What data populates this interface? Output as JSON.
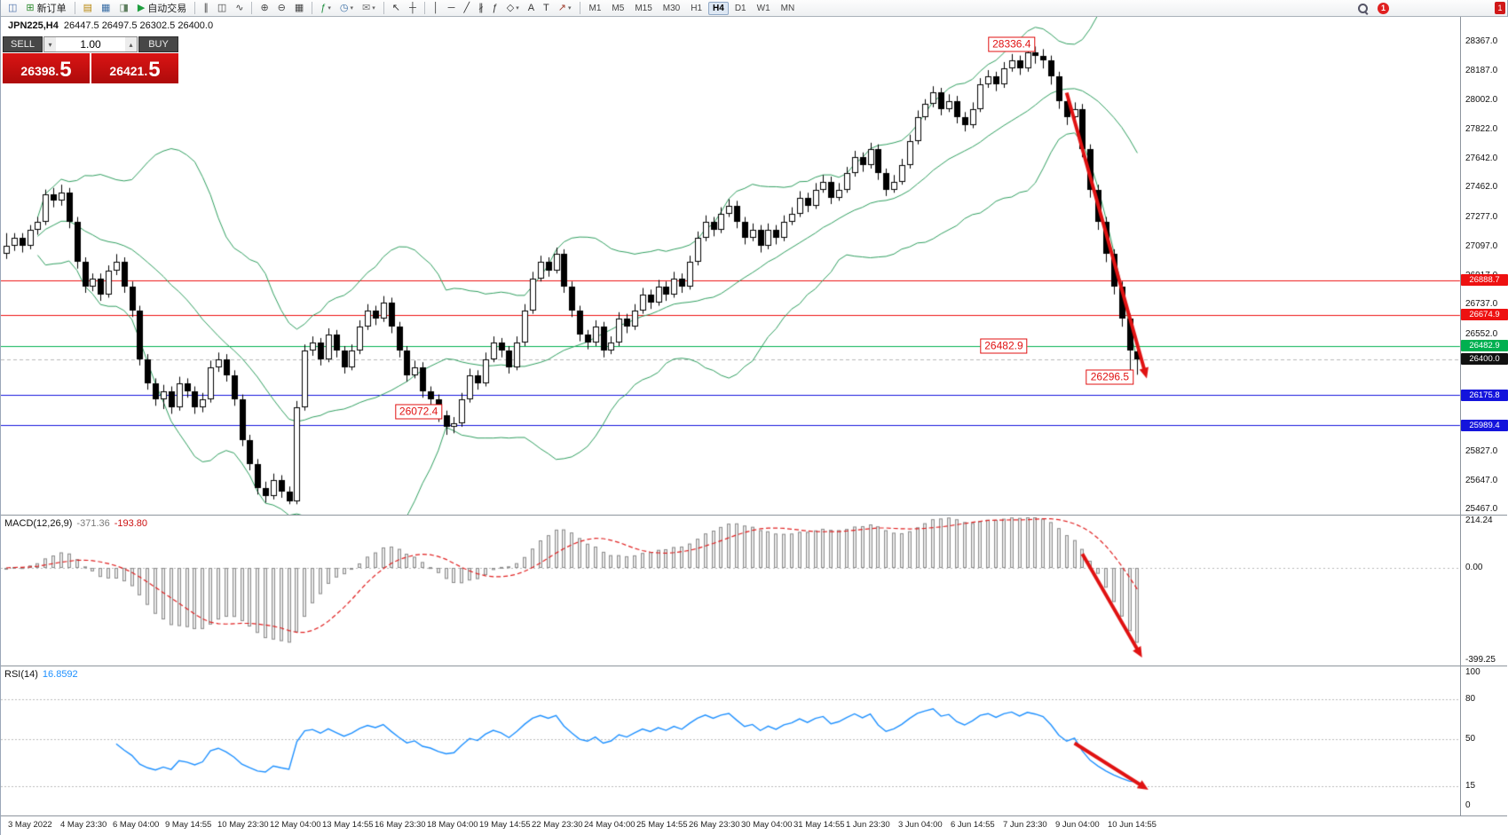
{
  "toolbar": {
    "new_order_label": "新订单",
    "autotrade_label": "自动交易",
    "timeframes": [
      "M1",
      "M5",
      "M15",
      "M30",
      "H1",
      "H4",
      "D1",
      "W1",
      "MN"
    ],
    "active_timeframe": "H4",
    "notification_count": "1",
    "corner_badge": "1",
    "items": [
      {
        "type": "icon",
        "name": "chart-window-icon",
        "glyph": "◫",
        "color": "#4a6ea9"
      },
      {
        "type": "button",
        "name": "new-order-button",
        "glyph": "⊞",
        "color": "#2e8b2e",
        "label_key": "new_order_label"
      },
      {
        "type": "sep"
      },
      {
        "type": "icon",
        "name": "profiles-icon",
        "glyph": "▤",
        "color": "#b8860b"
      },
      {
        "type": "icon",
        "name": "market-watch-icon",
        "glyph": "▦",
        "color": "#3a6ea5"
      },
      {
        "type": "icon",
        "name": "data-window-icon",
        "glyph": "◨",
        "color": "#5f7f5f"
      },
      {
        "type": "button",
        "name": "autotrading-button",
        "glyph": "▶",
        "color": "#1e9e3e",
        "label_key": "autotrade_label"
      },
      {
        "type": "sep"
      },
      {
        "type": "icon",
        "name": "bar-chart-type-icon",
        "glyph": "∥",
        "color": "#444444"
      },
      {
        "type": "icon",
        "name": "candlestick-chart-type-icon",
        "glyph": "◫",
        "color": "#444444"
      },
      {
        "type": "icon",
        "name": "line-chart-type-icon",
        "glyph": "∿",
        "color": "#444444"
      },
      {
        "type": "sep"
      },
      {
        "type": "icon",
        "name": "zoom-in-icon",
        "glyph": "⊕",
        "color": "#444444"
      },
      {
        "type": "icon",
        "name": "zoom-out-icon",
        "glyph": "⊖",
        "color": "#444444"
      },
      {
        "type": "icon",
        "name": "tile-windows-icon",
        "glyph": "▦",
        "color": "#444444"
      },
      {
        "type": "sep"
      },
      {
        "type": "icon",
        "name": "indicators-icon",
        "glyph": "ƒ",
        "color": "#1e8e3e",
        "caret": true
      },
      {
        "type": "icon",
        "name": "periods-icon",
        "glyph": "◷",
        "color": "#3a6ea5",
        "caret": true
      },
      {
        "type": "icon",
        "name": "templates-icon",
        "glyph": "✉",
        "color": "#777777",
        "caret": true
      },
      {
        "type": "sep"
      },
      {
        "type": "icon",
        "name": "cursor-icon",
        "glyph": "↖",
        "color": "#333333"
      },
      {
        "type": "icon",
        "name": "crosshair-icon",
        "glyph": "┼",
        "color": "#333333"
      },
      {
        "type": "sep"
      },
      {
        "type": "icon",
        "name": "vertical-line-icon",
        "glyph": "│",
        "color": "#333333"
      },
      {
        "type": "icon",
        "name": "horizontal-line-icon",
        "glyph": "─",
        "color": "#333333"
      },
      {
        "type": "icon",
        "name": "trendline-icon",
        "glyph": "╱",
        "color": "#333333"
      },
      {
        "type": "icon",
        "name": "equidistant-channel-icon",
        "glyph": "∦",
        "color": "#333333"
      },
      {
        "type": "icon",
        "name": "fibonacci-icon",
        "glyph": "ƒ",
        "color": "#333333"
      },
      {
        "type": "icon",
        "name": "shapes-icon",
        "glyph": "◇",
        "color": "#333333",
        "caret": true
      },
      {
        "type": "icon",
        "name": "text-icon",
        "glyph": "A",
        "color": "#333333"
      },
      {
        "type": "icon",
        "name": "text-label-icon",
        "glyph": "T",
        "color": "#333333"
      },
      {
        "type": "icon",
        "name": "arrows-tool-icon",
        "glyph": "↗",
        "color": "#a04030",
        "caret": true
      },
      {
        "type": "sep"
      }
    ]
  },
  "trade_panel": {
    "sell_label": "SELL",
    "buy_label": "BUY",
    "volume": "1.00",
    "sell_price_int": "26398.",
    "sell_price_frac": "5",
    "buy_price_int": "26421.",
    "buy_price_frac": "5"
  },
  "chart": {
    "symbol_period": "JPN225,H4",
    "ohlc_readout": "26447.5 26497.5 26302.5 26400.0",
    "colors": {
      "bollinger": "#2f9e5f",
      "candle_up": "#ffffff",
      "candle_down": "#000000",
      "candle_border": "#000000",
      "arrow": "#e01212",
      "macd_hist_fill": "#e9e9e9",
      "macd_hist_stroke": "#8c8c8c",
      "macd_signal": "#e02020",
      "macd_zero": "#b8b8b8",
      "rsi_line": "#1e90ff",
      "rsi_grid": "#bbbbbb",
      "current_price_line": "#b8b8b8",
      "current_price_box": "#111111",
      "annotation": "#e01212"
    },
    "levels": [
      {
        "price": 26888.7,
        "label": "26888.7",
        "color": "#ee1111"
      },
      {
        "price": 26674.9,
        "label": "26674.9",
        "color": "#ee1111"
      },
      {
        "price": 26482.9,
        "label": "26482.9",
        "color": "#00b050"
      },
      {
        "price": 26175.8,
        "label": "26175.8",
        "color": "#1414dc"
      },
      {
        "price": 25989.4,
        "label": "25989.4",
        "color": "#1414dc"
      }
    ],
    "current_price": {
      "value": 26400.0,
      "label": "26400.0"
    },
    "annotations": [
      {
        "text": "28336.4",
        "bar": 128,
        "price": 28349
      },
      {
        "text": "26482.9",
        "bar": 127,
        "price": 26482.9
      },
      {
        "text": "26296.5",
        "bar": 140.5,
        "price": 26290
      },
      {
        "text": "26072.4",
        "bar": 52.5,
        "price": 26072.4
      }
    ],
    "arrows": [
      {
        "pane": "main",
        "from_bar": 135,
        "from_val": 28050,
        "to_bar": 145.2,
        "to_val": 26280
      },
      {
        "pane": "macd",
        "from_bar": 137,
        "from_val": 60,
        "to_bar": 144.6,
        "to_val": -385
      },
      {
        "pane": "rsi",
        "from_bar": 136,
        "from_val": 47,
        "to_bar": 145.4,
        "to_val": 12
      }
    ]
  },
  "panes": {
    "macd_name": "MACD(12,26,9)",
    "macd_value_main": "-371.36",
    "macd_value_signal": "-193.80",
    "rsi_name": "RSI(14)",
    "rsi_value": "16.8592"
  },
  "chart_data": {
    "type": "candlestick",
    "symbol": "JPN225",
    "period": "H4",
    "ylim": [
      25430,
      28520
    ],
    "price_ticks": [
      "28367.0",
      "28187.0",
      "28002.0",
      "27822.0",
      "27642.0",
      "27462.0",
      "27277.0",
      "27097.0",
      "26917.0",
      "26737.0",
      "26552.0",
      "25827.0",
      "25647.0",
      "25467.0"
    ],
    "macd": {
      "fast": 12,
      "slow": 26,
      "signal": 9,
      "scale_ticks": [
        {
          "v": 214.24,
          "label": "214.24"
        },
        {
          "v": 0,
          "label": "0.00"
        },
        {
          "v": -399.25,
          "label": "-399.25"
        }
      ],
      "scale_max": 214.24,
      "scale_min": -399.25
    },
    "rsi": {
      "period": 14,
      "levels": [
        80,
        50,
        15
      ],
      "scale_ticks": [
        {
          "v": 100,
          "label": "100"
        },
        {
          "v": 80,
          "label": "80"
        },
        {
          "v": 50,
          "label": "50"
        },
        {
          "v": 15,
          "label": "15"
        },
        {
          "v": 0,
          "label": "0"
        }
      ]
    },
    "bollinger": {
      "period": 20,
      "deviation": 2
    },
    "time_labels": [
      "3 May 2022",
      "4 May 23:30",
      "6 May 04:00",
      "9 May 14:55",
      "10 May 23:30",
      "12 May 04:00",
      "13 May 14:55",
      "16 May 23:30",
      "18 May 04:00",
      "19 May 14:55",
      "22 May 23:30",
      "24 May 04:00",
      "25 May 14:55",
      "26 May 23:30",
      "30 May 04:00",
      "31 May 14:55",
      "1 Jun 23:30",
      "3 Jun 04:00",
      "6 Jun 14:55",
      "7 Jun 23:30",
      "9 Jun 04:00",
      "10 Jun 14:55"
    ],
    "candles": [
      [
        27050,
        27180,
        27020,
        27100
      ],
      [
        27100,
        27180,
        27070,
        27150
      ],
      [
        27150,
        27180,
        27060,
        27100
      ],
      [
        27100,
        27230,
        27080,
        27200
      ],
      [
        27200,
        27280,
        27170,
        27250
      ],
      [
        27250,
        27450,
        27230,
        27420
      ],
      [
        27420,
        27460,
        27340,
        27380
      ],
      [
        27380,
        27480,
        27350,
        27430
      ],
      [
        27430,
        27460,
        27210,
        27250
      ],
      [
        27250,
        27280,
        26960,
        27000
      ],
      [
        27000,
        27030,
        26810,
        26850
      ],
      [
        26850,
        26930,
        26820,
        26900
      ],
      [
        26900,
        26930,
        26760,
        26800
      ],
      [
        26800,
        26980,
        26780,
        26950
      ],
      [
        26950,
        27050,
        26920,
        27000
      ],
      [
        27000,
        27030,
        26810,
        26850
      ],
      [
        26850,
        26880,
        26660,
        26700
      ],
      [
        26700,
        26730,
        26360,
        26400
      ],
      [
        26400,
        26430,
        26210,
        26250
      ],
      [
        26250,
        26280,
        26110,
        26150
      ],
      [
        26150,
        26240,
        26090,
        26200
      ],
      [
        26200,
        26230,
        26060,
        26100
      ],
      [
        26100,
        26290,
        26080,
        26250
      ],
      [
        26250,
        26280,
        26160,
        26200
      ],
      [
        26200,
        26230,
        26060,
        26100
      ],
      [
        26100,
        26190,
        26070,
        26150
      ],
      [
        26150,
        26390,
        26130,
        26350
      ],
      [
        26350,
        26440,
        26320,
        26400
      ],
      [
        26400,
        26430,
        26260,
        26300
      ],
      [
        26300,
        26330,
        26110,
        26150
      ],
      [
        26150,
        26180,
        25860,
        25900
      ],
      [
        25900,
        25930,
        25710,
        25750
      ],
      [
        25750,
        25780,
        25560,
        25600
      ],
      [
        25600,
        25640,
        25510,
        25550
      ],
      [
        25550,
        25690,
        25530,
        25650
      ],
      [
        25650,
        25680,
        25540,
        25580
      ],
      [
        25580,
        25610,
        25500,
        25520
      ],
      [
        25520,
        26140,
        25500,
        26100
      ],
      [
        26100,
        26490,
        26080,
        26450
      ],
      [
        26450,
        26540,
        26420,
        26500
      ],
      [
        26500,
        26530,
        26360,
        26400
      ],
      [
        26400,
        26590,
        26380,
        26550
      ],
      [
        26550,
        26580,
        26410,
        26450
      ],
      [
        26450,
        26480,
        26310,
        26350
      ],
      [
        26350,
        26490,
        26330,
        26450
      ],
      [
        26450,
        26640,
        26430,
        26600
      ],
      [
        26600,
        26740,
        26580,
        26700
      ],
      [
        26700,
        26730,
        26610,
        26650
      ],
      [
        26650,
        26790,
        26630,
        26750
      ],
      [
        26750,
        26780,
        26560,
        26600
      ],
      [
        26600,
        26630,
        26410,
        26450
      ],
      [
        26450,
        26480,
        26260,
        26300
      ],
      [
        26300,
        26390,
        26280,
        26350
      ],
      [
        26350,
        26380,
        26160,
        26200
      ],
      [
        26200,
        26230,
        26110,
        26150
      ],
      [
        26150,
        26180,
        26010,
        26050
      ],
      [
        26050,
        26080,
        25930,
        25980
      ],
      [
        25980,
        26040,
        25940,
        26000
      ],
      [
        26000,
        26190,
        25980,
        26150
      ],
      [
        26150,
        26340,
        26130,
        26300
      ],
      [
        26300,
        26330,
        26210,
        26250
      ],
      [
        26250,
        26440,
        26230,
        26400
      ],
      [
        26400,
        26540,
        26380,
        26500
      ],
      [
        26500,
        26530,
        26410,
        26450
      ],
      [
        26450,
        26480,
        26310,
        26350
      ],
      [
        26350,
        26540,
        26330,
        26500
      ],
      [
        26500,
        26740,
        26480,
        26700
      ],
      [
        26700,
        26940,
        26680,
        26900
      ],
      [
        26900,
        27040,
        26880,
        27000
      ],
      [
        27000,
        27030,
        26910,
        26950
      ],
      [
        26950,
        27090,
        26930,
        27050
      ],
      [
        27050,
        27080,
        26810,
        26850
      ],
      [
        26850,
        26880,
        26660,
        26700
      ],
      [
        26700,
        26730,
        26510,
        26550
      ],
      [
        26550,
        26580,
        26460,
        26500
      ],
      [
        26500,
        26640,
        26480,
        26600
      ],
      [
        26600,
        26630,
        26410,
        26450
      ],
      [
        26450,
        26540,
        26430,
        26500
      ],
      [
        26500,
        26690,
        26480,
        26650
      ],
      [
        26650,
        26680,
        26560,
        26600
      ],
      [
        26600,
        26740,
        26580,
        26700
      ],
      [
        26700,
        26840,
        26680,
        26800
      ],
      [
        26800,
        26830,
        26710,
        26750
      ],
      [
        26750,
        26890,
        26730,
        26850
      ],
      [
        26850,
        26880,
        26760,
        26800
      ],
      [
        26800,
        26940,
        26780,
        26900
      ],
      [
        26900,
        26930,
        26810,
        26850
      ],
      [
        26850,
        27040,
        26830,
        27000
      ],
      [
        27000,
        27190,
        26980,
        27150
      ],
      [
        27150,
        27290,
        27130,
        27250
      ],
      [
        27250,
        27280,
        27160,
        27200
      ],
      [
        27200,
        27340,
        27180,
        27300
      ],
      [
        27300,
        27390,
        27280,
        27350
      ],
      [
        27350,
        27380,
        27210,
        27250
      ],
      [
        27250,
        27280,
        27110,
        27150
      ],
      [
        27150,
        27240,
        27130,
        27200
      ],
      [
        27200,
        27230,
        27060,
        27100
      ],
      [
        27100,
        27240,
        27080,
        27200
      ],
      [
        27200,
        27230,
        27110,
        27150
      ],
      [
        27150,
        27290,
        27130,
        27250
      ],
      [
        27250,
        27340,
        27230,
        27300
      ],
      [
        27300,
        27440,
        27280,
        27400
      ],
      [
        27400,
        27430,
        27310,
        27350
      ],
      [
        27350,
        27490,
        27330,
        27450
      ],
      [
        27450,
        27540,
        27430,
        27500
      ],
      [
        27500,
        27530,
        27360,
        27400
      ],
      [
        27400,
        27490,
        27380,
        27450
      ],
      [
        27450,
        27590,
        27430,
        27550
      ],
      [
        27550,
        27690,
        27530,
        27650
      ],
      [
        27650,
        27680,
        27560,
        27600
      ],
      [
        27600,
        27740,
        27580,
        27700
      ],
      [
        27700,
        27730,
        27510,
        27550
      ],
      [
        27550,
        27580,
        27410,
        27450
      ],
      [
        27450,
        27540,
        27430,
        27500
      ],
      [
        27500,
        27640,
        27480,
        27600
      ],
      [
        27600,
        27790,
        27580,
        27750
      ],
      [
        27750,
        27940,
        27730,
        27900
      ],
      [
        27900,
        28010,
        27880,
        27980
      ],
      [
        27980,
        28090,
        27960,
        28050
      ],
      [
        28050,
        28080,
        27910,
        27950
      ],
      [
        27950,
        28040,
        27930,
        28000
      ],
      [
        28000,
        28030,
        27860,
        27900
      ],
      [
        27900,
        27930,
        27810,
        27850
      ],
      [
        27850,
        27990,
        27830,
        27950
      ],
      [
        27950,
        28140,
        27930,
        28100
      ],
      [
        28100,
        28190,
        28080,
        28150
      ],
      [
        28150,
        28180,
        28060,
        28100
      ],
      [
        28100,
        28240,
        28080,
        28200
      ],
      [
        28200,
        28290,
        28180,
        28250
      ],
      [
        28250,
        28280,
        28160,
        28200
      ],
      [
        28200,
        28330,
        28180,
        28300
      ],
      [
        28300,
        28336.4,
        28230,
        28280
      ],
      [
        28280,
        28320,
        28200,
        28250
      ],
      [
        28250,
        28280,
        28100,
        28150
      ],
      [
        28150,
        28180,
        27950,
        28000
      ],
      [
        28000,
        28030,
        27850,
        27900
      ],
      [
        27900,
        27990,
        27880,
        27950
      ],
      [
        27950,
        27980,
        27650,
        27700
      ],
      [
        27700,
        27730,
        27400,
        27450
      ],
      [
        27450,
        27480,
        27200,
        27250
      ],
      [
        27250,
        27280,
        27000,
        27050
      ],
      [
        27050,
        27080,
        26800,
        26850
      ],
      [
        26850,
        26880,
        26600,
        26650
      ],
      [
        26650,
        26680,
        26296.5,
        26450
      ],
      [
        26447.5,
        26497.5,
        26302.5,
        26400.0
      ]
    ]
  }
}
